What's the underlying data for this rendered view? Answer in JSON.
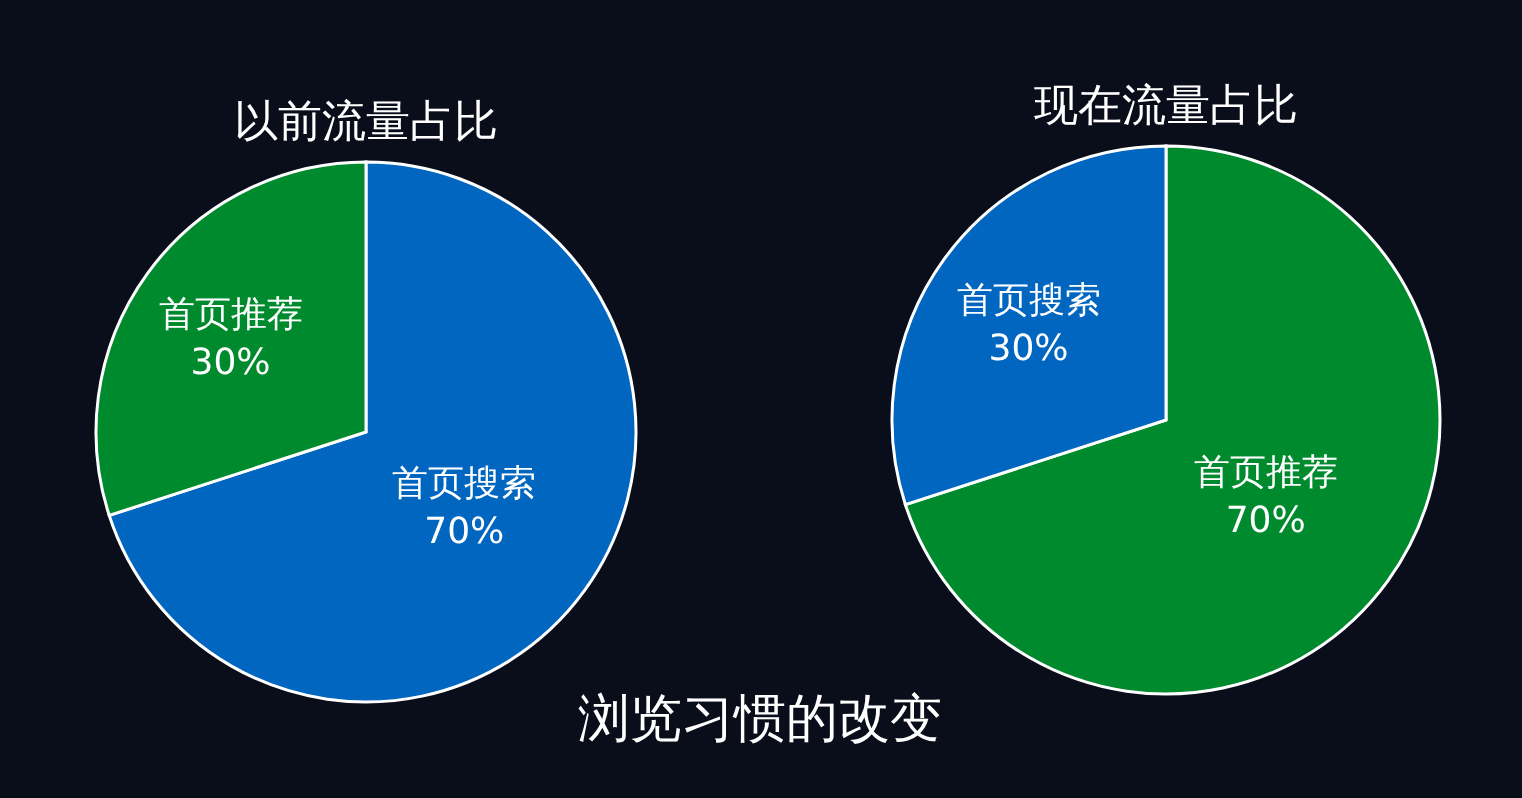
{
  "chart_data": [
    {
      "type": "pie",
      "title": "以前流量占比",
      "categories": [
        "首页搜索",
        "首页推荐"
      ],
      "values": [
        70,
        30
      ],
      "value_labels": [
        "70%",
        "30%"
      ],
      "colors": [
        "#0066c0",
        "#008a2e"
      ],
      "annotations": [
        "浏览习惯的改变"
      ]
    },
    {
      "type": "pie",
      "title": "现在流量占比",
      "categories": [
        "首页推荐",
        "首页搜索"
      ],
      "values": [
        70,
        30
      ],
      "value_labels": [
        "70%",
        "30%"
      ],
      "colors": [
        "#008a2e",
        "#0066c0"
      ]
    }
  ]
}
